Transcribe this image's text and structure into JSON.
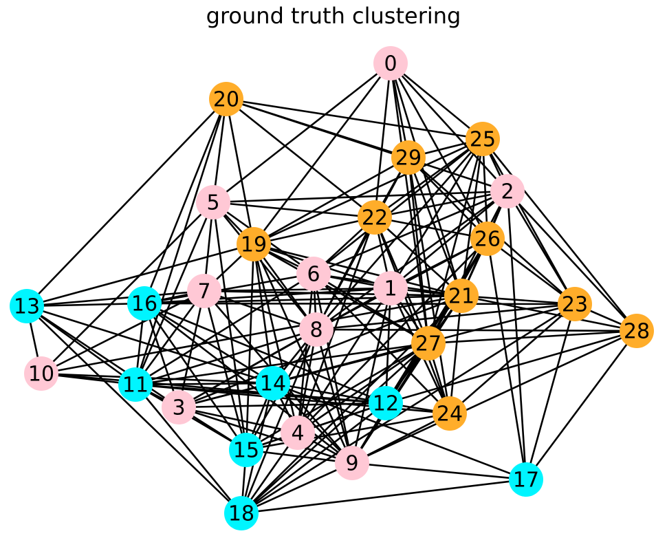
{
  "title": "ground truth clustering",
  "colors": {
    "pink": "#ffc8d5",
    "orange": "#ffad2a",
    "cyan": "#00f5ff"
  },
  "nodes": [
    {
      "id": "0",
      "cluster": "pink"
    },
    {
      "id": "1",
      "cluster": "pink"
    },
    {
      "id": "2",
      "cluster": "pink"
    },
    {
      "id": "3",
      "cluster": "pink"
    },
    {
      "id": "4",
      "cluster": "pink"
    },
    {
      "id": "5",
      "cluster": "pink"
    },
    {
      "id": "6",
      "cluster": "pink"
    },
    {
      "id": "7",
      "cluster": "pink"
    },
    {
      "id": "8",
      "cluster": "pink"
    },
    {
      "id": "9",
      "cluster": "pink"
    },
    {
      "id": "10",
      "cluster": "pink"
    },
    {
      "id": "11",
      "cluster": "cyan"
    },
    {
      "id": "12",
      "cluster": "cyan"
    },
    {
      "id": "13",
      "cluster": "cyan"
    },
    {
      "id": "14",
      "cluster": "cyan"
    },
    {
      "id": "15",
      "cluster": "cyan"
    },
    {
      "id": "16",
      "cluster": "cyan"
    },
    {
      "id": "17",
      "cluster": "cyan"
    },
    {
      "id": "18",
      "cluster": "cyan"
    },
    {
      "id": "19",
      "cluster": "orange"
    },
    {
      "id": "20",
      "cluster": "orange"
    },
    {
      "id": "21",
      "cluster": "orange"
    },
    {
      "id": "22",
      "cluster": "orange"
    },
    {
      "id": "23",
      "cluster": "orange"
    },
    {
      "id": "24",
      "cluster": "orange"
    },
    {
      "id": "25",
      "cluster": "orange"
    },
    {
      "id": "26",
      "cluster": "orange"
    },
    {
      "id": "27",
      "cluster": "orange"
    },
    {
      "id": "28",
      "cluster": "orange"
    },
    {
      "id": "29",
      "cluster": "orange"
    }
  ],
  "edges": [
    [
      "0",
      "29"
    ],
    [
      "0",
      "22"
    ],
    [
      "0",
      "25"
    ],
    [
      "0",
      "26"
    ],
    [
      "0",
      "21"
    ],
    [
      "0",
      "27"
    ],
    [
      "0",
      "5"
    ],
    [
      "0",
      "19"
    ],
    [
      "0",
      "2"
    ],
    [
      "20",
      "5"
    ],
    [
      "20",
      "19"
    ],
    [
      "20",
      "25"
    ],
    [
      "20",
      "29"
    ],
    [
      "20",
      "2"
    ],
    [
      "20",
      "22"
    ],
    [
      "20",
      "13"
    ],
    [
      "20",
      "11"
    ],
    [
      "20",
      "16"
    ],
    [
      "25",
      "29"
    ],
    [
      "25",
      "22"
    ],
    [
      "25",
      "2"
    ],
    [
      "25",
      "26"
    ],
    [
      "25",
      "21"
    ],
    [
      "25",
      "27"
    ],
    [
      "25",
      "6"
    ],
    [
      "25",
      "1"
    ],
    [
      "25",
      "8"
    ],
    [
      "25",
      "23"
    ],
    [
      "25",
      "28"
    ],
    [
      "25",
      "19"
    ],
    [
      "29",
      "22"
    ],
    [
      "29",
      "21"
    ],
    [
      "29",
      "27"
    ],
    [
      "29",
      "26"
    ],
    [
      "29",
      "23"
    ],
    [
      "29",
      "24"
    ],
    [
      "29",
      "19"
    ],
    [
      "29",
      "8"
    ],
    [
      "2",
      "5"
    ],
    [
      "2",
      "22"
    ],
    [
      "2",
      "26"
    ],
    [
      "2",
      "27"
    ],
    [
      "2",
      "21"
    ],
    [
      "2",
      "8"
    ],
    [
      "2",
      "23"
    ],
    [
      "2",
      "28"
    ],
    [
      "2",
      "1"
    ],
    [
      "2",
      "6"
    ],
    [
      "5",
      "19"
    ],
    [
      "5",
      "6"
    ],
    [
      "5",
      "8"
    ],
    [
      "5",
      "7"
    ],
    [
      "5",
      "11"
    ],
    [
      "5",
      "15"
    ],
    [
      "5",
      "10"
    ],
    [
      "5",
      "22"
    ],
    [
      "22",
      "19"
    ],
    [
      "22",
      "1"
    ],
    [
      "22",
      "8"
    ],
    [
      "22",
      "6"
    ],
    [
      "22",
      "4"
    ],
    [
      "22",
      "24"
    ],
    [
      "22",
      "26"
    ],
    [
      "22",
      "27"
    ],
    [
      "22",
      "21"
    ],
    [
      "19",
      "6"
    ],
    [
      "19",
      "1"
    ],
    [
      "19",
      "8"
    ],
    [
      "19",
      "7"
    ],
    [
      "19",
      "13"
    ],
    [
      "19",
      "14"
    ],
    [
      "19",
      "15"
    ],
    [
      "19",
      "9"
    ],
    [
      "19",
      "4"
    ],
    [
      "19",
      "21"
    ],
    [
      "19",
      "27"
    ],
    [
      "26",
      "1"
    ],
    [
      "26",
      "21"
    ],
    [
      "26",
      "27"
    ],
    [
      "26",
      "23"
    ],
    [
      "26",
      "17"
    ],
    [
      "26",
      "12"
    ],
    [
      "26",
      "9"
    ],
    [
      "26",
      "4"
    ],
    [
      "26",
      "8"
    ],
    [
      "6",
      "1"
    ],
    [
      "6",
      "8"
    ],
    [
      "6",
      "4"
    ],
    [
      "6",
      "9"
    ],
    [
      "6",
      "27"
    ],
    [
      "6",
      "24"
    ],
    [
      "6",
      "16"
    ],
    [
      "6",
      "11"
    ],
    [
      "6",
      "21"
    ],
    [
      "1",
      "21"
    ],
    [
      "1",
      "27"
    ],
    [
      "1",
      "12"
    ],
    [
      "1",
      "24"
    ],
    [
      "1",
      "16"
    ],
    [
      "1",
      "7"
    ],
    [
      "1",
      "4"
    ],
    [
      "1",
      "9"
    ],
    [
      "1",
      "3"
    ],
    [
      "7",
      "16"
    ],
    [
      "7",
      "13"
    ],
    [
      "7",
      "11"
    ],
    [
      "7",
      "3"
    ],
    [
      "7",
      "15"
    ],
    [
      "7",
      "8"
    ],
    [
      "7",
      "9"
    ],
    [
      "7",
      "21"
    ],
    [
      "7",
      "10"
    ],
    [
      "8",
      "3"
    ],
    [
      "8",
      "11"
    ],
    [
      "8",
      "14"
    ],
    [
      "8",
      "4"
    ],
    [
      "8",
      "9"
    ],
    [
      "8",
      "15"
    ],
    [
      "8",
      "18"
    ],
    [
      "8",
      "28"
    ],
    [
      "8",
      "23"
    ],
    [
      "13",
      "16"
    ],
    [
      "13",
      "10"
    ],
    [
      "13",
      "11"
    ],
    [
      "13",
      "14"
    ],
    [
      "13",
      "18"
    ],
    [
      "13",
      "3"
    ],
    [
      "16",
      "11"
    ],
    [
      "16",
      "3"
    ],
    [
      "16",
      "14"
    ],
    [
      "16",
      "12"
    ],
    [
      "16",
      "15"
    ],
    [
      "16",
      "9"
    ],
    [
      "16",
      "23"
    ],
    [
      "16",
      "21"
    ],
    [
      "10",
      "11"
    ],
    [
      "10",
      "14"
    ],
    [
      "10",
      "12"
    ],
    [
      "10",
      "21"
    ],
    [
      "11",
      "3"
    ],
    [
      "11",
      "14"
    ],
    [
      "11",
      "12"
    ],
    [
      "11",
      "24"
    ],
    [
      "11",
      "15"
    ],
    [
      "11",
      "18"
    ],
    [
      "11",
      "27"
    ],
    [
      "3",
      "14"
    ],
    [
      "3",
      "15"
    ],
    [
      "3",
      "4"
    ],
    [
      "3",
      "12"
    ],
    [
      "3",
      "9"
    ],
    [
      "3",
      "23"
    ],
    [
      "3",
      "21"
    ],
    [
      "14",
      "12"
    ],
    [
      "14",
      "4"
    ],
    [
      "14",
      "9"
    ],
    [
      "14",
      "15"
    ],
    [
      "14",
      "18"
    ],
    [
      "14",
      "17"
    ],
    [
      "14",
      "27"
    ],
    [
      "12",
      "24"
    ],
    [
      "12",
      "4"
    ],
    [
      "12",
      "15"
    ],
    [
      "12",
      "18"
    ],
    [
      "12",
      "28"
    ],
    [
      "12",
      "21"
    ],
    [
      "12",
      "27"
    ],
    [
      "24",
      "15"
    ],
    [
      "24",
      "9"
    ],
    [
      "24",
      "27"
    ],
    [
      "24",
      "21"
    ],
    [
      "24",
      "23"
    ],
    [
      "4",
      "15"
    ],
    [
      "4",
      "9"
    ],
    [
      "4",
      "18"
    ],
    [
      "4",
      "27"
    ],
    [
      "15",
      "9"
    ],
    [
      "15",
      "18"
    ],
    [
      "15",
      "27"
    ],
    [
      "9",
      "17"
    ],
    [
      "9",
      "18"
    ],
    [
      "9",
      "21"
    ],
    [
      "9",
      "27"
    ],
    [
      "9",
      "28"
    ],
    [
      "17",
      "18"
    ],
    [
      "17",
      "23"
    ],
    [
      "17",
      "28"
    ],
    [
      "17",
      "2"
    ],
    [
      "21",
      "23"
    ],
    [
      "21",
      "28"
    ],
    [
      "21",
      "27"
    ],
    [
      "21",
      "18"
    ],
    [
      "27",
      "28"
    ],
    [
      "27",
      "18"
    ],
    [
      "23",
      "28"
    ],
    [
      "23",
      "18"
    ]
  ]
}
